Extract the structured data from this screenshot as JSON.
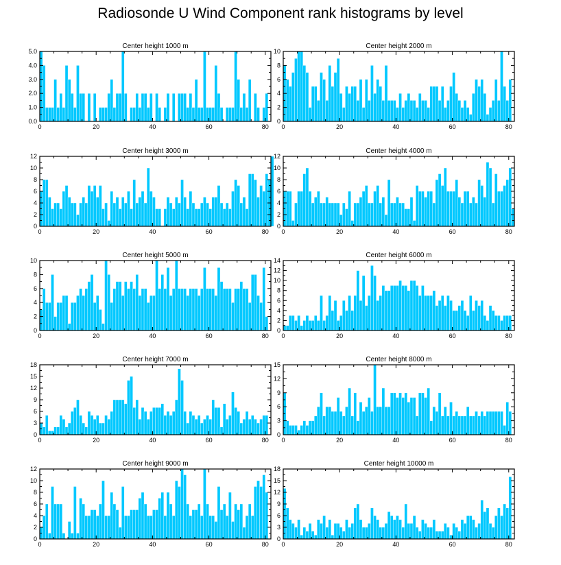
{
  "title": "Radiosonde U Wind Component rank histograms by level",
  "bar_color": "#00c8ff",
  "chart_data": [
    {
      "type": "bar",
      "title": "Center height 1000 m",
      "xlim": [
        0,
        82
      ],
      "ylim": [
        0,
        5
      ],
      "xticks": [
        0,
        20,
        40,
        60,
        80
      ],
      "yticks": [
        0,
        1,
        2,
        3,
        4,
        5
      ],
      "ytick_labels": [
        "0.0",
        "1.0",
        "2.0",
        "3.0",
        "4.0",
        "5.0"
      ],
      "values": [
        5,
        4,
        1,
        1,
        1,
        3,
        1,
        2,
        1,
        4,
        3,
        2,
        1,
        4,
        2,
        2,
        0,
        2,
        0,
        2,
        0,
        1,
        1,
        1,
        2,
        3,
        1,
        2,
        2,
        5,
        2,
        0,
        1,
        1,
        2,
        1,
        2,
        2,
        1,
        2,
        0,
        2,
        1,
        0,
        1,
        2,
        0,
        2,
        0,
        2,
        2,
        2,
        1,
        2,
        1,
        3,
        1,
        1,
        5,
        1,
        1,
        1,
        4,
        2,
        1,
        0,
        1,
        1,
        1,
        5,
        3,
        1,
        2,
        1,
        3,
        0,
        2,
        1,
        0,
        1,
        2
      ],
      "xlabel": "",
      "ylabel": ""
    },
    {
      "type": "bar",
      "title": "Center height 2000 m",
      "xlim": [
        0,
        82
      ],
      "ylim": [
        0,
        10
      ],
      "xticks": [
        0,
        20,
        40,
        60,
        80
      ],
      "yticks": [
        0,
        2,
        4,
        6,
        8,
        10
      ],
      "ytick_labels": [
        "0",
        "2",
        "4",
        "6",
        "8",
        "10"
      ],
      "values": [
        8,
        6,
        5,
        7,
        9,
        10,
        10,
        8,
        7,
        2,
        5,
        5,
        3,
        7,
        6,
        3,
        8,
        5,
        7,
        9,
        4,
        2,
        5,
        4,
        5,
        5,
        3,
        6,
        2,
        6,
        3,
        8,
        4,
        6,
        5,
        3,
        8,
        3,
        3,
        3,
        2,
        4,
        2,
        3,
        4,
        3,
        3,
        2,
        4,
        3,
        3,
        2,
        5,
        5,
        5,
        3,
        5,
        2,
        3,
        5,
        7,
        4,
        3,
        2,
        3,
        2,
        1,
        4,
        6,
        5,
        6,
        4,
        1,
        2,
        3,
        6,
        3,
        10,
        5,
        3,
        6
      ],
      "xlabel": "",
      "ylabel": ""
    },
    {
      "type": "bar",
      "title": "Center height 3000 m",
      "xlim": [
        0,
        82
      ],
      "ylim": [
        0,
        12
      ],
      "xticks": [
        0,
        20,
        40,
        60,
        80
      ],
      "yticks": [
        0,
        2,
        4,
        6,
        8,
        10,
        12
      ],
      "ytick_labels": [
        "0",
        "2",
        "4",
        "6",
        "8",
        "10",
        "12"
      ],
      "values": [
        6,
        8,
        8,
        5,
        3,
        4,
        4,
        3,
        6,
        7,
        5,
        4,
        4,
        2,
        4,
        5,
        4,
        7,
        6,
        7,
        5,
        7,
        3,
        4,
        1,
        6,
        4,
        5,
        3,
        5,
        4,
        6,
        3,
        8,
        4,
        5,
        6,
        4,
        10,
        6,
        5,
        3,
        3,
        0,
        3,
        5,
        4,
        3,
        5,
        4,
        8,
        5,
        3,
        6,
        4,
        3,
        3,
        4,
        5,
        4,
        3,
        5,
        5,
        7,
        4,
        3,
        4,
        3,
        6,
        8,
        7,
        4,
        5,
        3,
        9,
        9,
        8,
        5,
        7,
        6,
        9,
        8,
        12
      ],
      "xlabel": "",
      "ylabel": ""
    },
    {
      "type": "bar",
      "title": "Center height 4000 m",
      "xlim": [
        0,
        82
      ],
      "ylim": [
        0,
        12
      ],
      "xticks": [
        0,
        20,
        40,
        60,
        80
      ],
      "yticks": [
        0,
        2,
        4,
        6,
        8,
        10,
        12
      ],
      "ytick_labels": [
        "0",
        "2",
        "4",
        "6",
        "8",
        "10",
        "12"
      ],
      "values": [
        6,
        6,
        6,
        1,
        4,
        6,
        6,
        9,
        10,
        6,
        4,
        5,
        6,
        4,
        4,
        5,
        4,
        4,
        4,
        4,
        2,
        4,
        3,
        6,
        1,
        4,
        4,
        5,
        6,
        7,
        4,
        4,
        6,
        7,
        4,
        5,
        2,
        8,
        4,
        4,
        5,
        4,
        4,
        3,
        3,
        5,
        1,
        7,
        6,
        6,
        5,
        6,
        6,
        4,
        8,
        9,
        7,
        10,
        6,
        6,
        6,
        8,
        5,
        4,
        6,
        6,
        4,
        5,
        4,
        8,
        7,
        5,
        11,
        10,
        4,
        9,
        6,
        6,
        7,
        8,
        10,
        3
      ],
      "xlabel": "",
      "ylabel": ""
    },
    {
      "type": "bar",
      "title": "Center height 5000 m",
      "xlim": [
        0,
        82
      ],
      "ylim": [
        0,
        10
      ],
      "xticks": [
        0,
        20,
        40,
        60,
        80
      ],
      "yticks": [
        0,
        2,
        4,
        6,
        8,
        10
      ],
      "ytick_labels": [
        "0",
        "2",
        "4",
        "6",
        "8",
        "10"
      ],
      "values": [
        3,
        6,
        4,
        4,
        8,
        2,
        4,
        4,
        5,
        5,
        1,
        4,
        4,
        5,
        6,
        5,
        6,
        7,
        8,
        4,
        5,
        3,
        1,
        10,
        8,
        4,
        6,
        7,
        7,
        5,
        7,
        6,
        7,
        6,
        8,
        5,
        6,
        6,
        4,
        5,
        5,
        10,
        6,
        8,
        6,
        9,
        5,
        6,
        10,
        6,
        6,
        6,
        5,
        6,
        6,
        6,
        5,
        6,
        9,
        6,
        6,
        6,
        5,
        9,
        7,
        6,
        6,
        6,
        4,
        6,
        6,
        7,
        6,
        6,
        4,
        8,
        8,
        5,
        4,
        9,
        2
      ],
      "xlabel": "",
      "ylabel": ""
    },
    {
      "type": "bar",
      "title": "Center height 6000 m",
      "xlim": [
        0,
        82
      ],
      "ylim": [
        0,
        14
      ],
      "xticks": [
        0,
        20,
        40,
        60,
        80
      ],
      "yticks": [
        0,
        2,
        4,
        6,
        8,
        10,
        12,
        14
      ],
      "ytick_labels": [
        "0",
        "2",
        "4",
        "6",
        "8",
        "10",
        "12",
        "14"
      ],
      "values": [
        1,
        1,
        3,
        3,
        2,
        3,
        1,
        2,
        3,
        2,
        2,
        3,
        2,
        7,
        2,
        3,
        7,
        4,
        6,
        2,
        3,
        6,
        4,
        7,
        4,
        7,
        12,
        6,
        11,
        5,
        7,
        13,
        11,
        6,
        7,
        9,
        8,
        8,
        9,
        9,
        9,
        10,
        9,
        9,
        8,
        10,
        10,
        9,
        7,
        9,
        7,
        7,
        7,
        8,
        5,
        6,
        7,
        5,
        7,
        6,
        4,
        4,
        5,
        6,
        4,
        3,
        7,
        4,
        6,
        5,
        6,
        3,
        2,
        5,
        4,
        3,
        3,
        2,
        3,
        3,
        3
      ],
      "xlabel": "",
      "ylabel": ""
    },
    {
      "type": "bar",
      "title": "Center height 7000 m",
      "xlim": [
        0,
        82
      ],
      "ylim": [
        0,
        18
      ],
      "xticks": [
        0,
        20,
        40,
        60,
        80
      ],
      "yticks": [
        0,
        3,
        6,
        9,
        12,
        15,
        18
      ],
      "ytick_labels": [
        "0",
        "3",
        "6",
        "9",
        "12",
        "15",
        "18"
      ],
      "values": [
        3,
        2,
        5,
        1,
        1,
        2,
        2,
        5,
        4,
        2,
        3,
        6,
        7,
        9,
        5,
        3,
        2,
        6,
        5,
        4,
        5,
        3,
        3,
        5,
        4,
        6,
        9,
        9,
        9,
        9,
        8,
        14,
        15,
        7,
        9,
        4,
        7,
        6,
        4,
        6,
        7,
        7,
        7,
        8,
        5,
        6,
        5,
        6,
        9,
        17,
        14,
        6,
        3,
        6,
        5,
        4,
        5,
        3,
        4,
        5,
        4,
        9,
        7,
        7,
        2,
        8,
        4,
        5,
        11,
        7,
        6,
        3,
        4,
        6,
        4,
        5,
        4,
        3,
        4,
        5,
        5
      ],
      "xlabel": "",
      "ylabel": ""
    },
    {
      "type": "bar",
      "title": "Center height 8000 m",
      "xlim": [
        0,
        82
      ],
      "ylim": [
        0,
        15
      ],
      "xticks": [
        0,
        20,
        40,
        60,
        80
      ],
      "yticks": [
        0,
        3,
        6,
        9,
        12,
        15
      ],
      "ytick_labels": [
        "0",
        "3",
        "6",
        "9",
        "12",
        "15"
      ],
      "values": [
        9,
        3,
        2,
        2,
        2,
        1,
        2,
        3,
        2,
        3,
        3,
        4,
        6,
        9,
        4,
        6,
        6,
        5,
        5,
        8,
        5,
        4,
        6,
        10,
        4,
        9,
        3,
        7,
        5,
        6,
        8,
        5,
        15,
        6,
        6,
        10,
        6,
        6,
        9,
        9,
        8,
        9,
        8,
        9,
        7,
        8,
        8,
        4,
        9,
        9,
        8,
        10,
        3,
        6,
        5,
        9,
        4,
        6,
        4,
        7,
        4,
        5,
        4,
        4,
        4,
        6,
        4,
        4,
        5,
        4,
        5,
        4,
        5,
        5,
        5,
        5,
        5,
        5,
        2,
        7,
        5
      ],
      "xlabel": "",
      "ylabel": ""
    },
    {
      "type": "bar",
      "title": "Center height 9000 m",
      "xlim": [
        0,
        82
      ],
      "ylim": [
        0,
        12
      ],
      "xticks": [
        0,
        20,
        40,
        60,
        80
      ],
      "yticks": [
        0,
        2,
        4,
        6,
        8,
        10,
        12
      ],
      "ytick_labels": [
        "0",
        "2",
        "4",
        "6",
        "8",
        "10",
        "12"
      ],
      "values": [
        2,
        4,
        6,
        1,
        9,
        6,
        6,
        6,
        1,
        0,
        3,
        1,
        9,
        1,
        7,
        6,
        4,
        4,
        5,
        5,
        4,
        6,
        10,
        4,
        4,
        8,
        6,
        5,
        2,
        9,
        4,
        4,
        5,
        5,
        5,
        7,
        8,
        6,
        4,
        4,
        5,
        5,
        7,
        8,
        4,
        8,
        6,
        4,
        10,
        9,
        12,
        11,
        6,
        4,
        5,
        5,
        6,
        4,
        12,
        6,
        4,
        4,
        3,
        9,
        5,
        6,
        4,
        8,
        3,
        6,
        5,
        6,
        2,
        4,
        6,
        4,
        9,
        10,
        9,
        11,
        8
      ],
      "xlabel": "",
      "ylabel": ""
    },
    {
      "type": "bar",
      "title": "Center height 10000 m",
      "xlim": [
        0,
        82
      ],
      "ylim": [
        0,
        18
      ],
      "xticks": [
        0,
        20,
        40,
        60,
        80
      ],
      "yticks": [
        0,
        3,
        6,
        9,
        12,
        15,
        18
      ],
      "ytick_labels": [
        "0",
        "3",
        "6",
        "9",
        "12",
        "15",
        "18"
      ],
      "values": [
        13,
        8,
        5,
        4,
        3,
        5,
        1,
        3,
        2,
        4,
        2,
        1,
        5,
        4,
        6,
        3,
        5,
        1,
        4,
        4,
        3,
        2,
        5,
        3,
        4,
        8,
        9,
        5,
        3,
        3,
        4,
        8,
        6,
        5,
        3,
        3,
        4,
        7,
        6,
        5,
        6,
        5,
        3,
        9,
        4,
        4,
        6,
        3,
        2,
        5,
        4,
        3,
        3,
        5,
        2,
        2,
        2,
        4,
        3,
        1,
        4,
        3,
        2,
        5,
        4,
        6,
        6,
        5,
        3,
        4,
        10,
        7,
        8,
        4,
        3,
        6,
        8,
        6,
        9,
        8,
        16
      ],
      "xlabel": "",
      "ylabel": ""
    }
  ]
}
